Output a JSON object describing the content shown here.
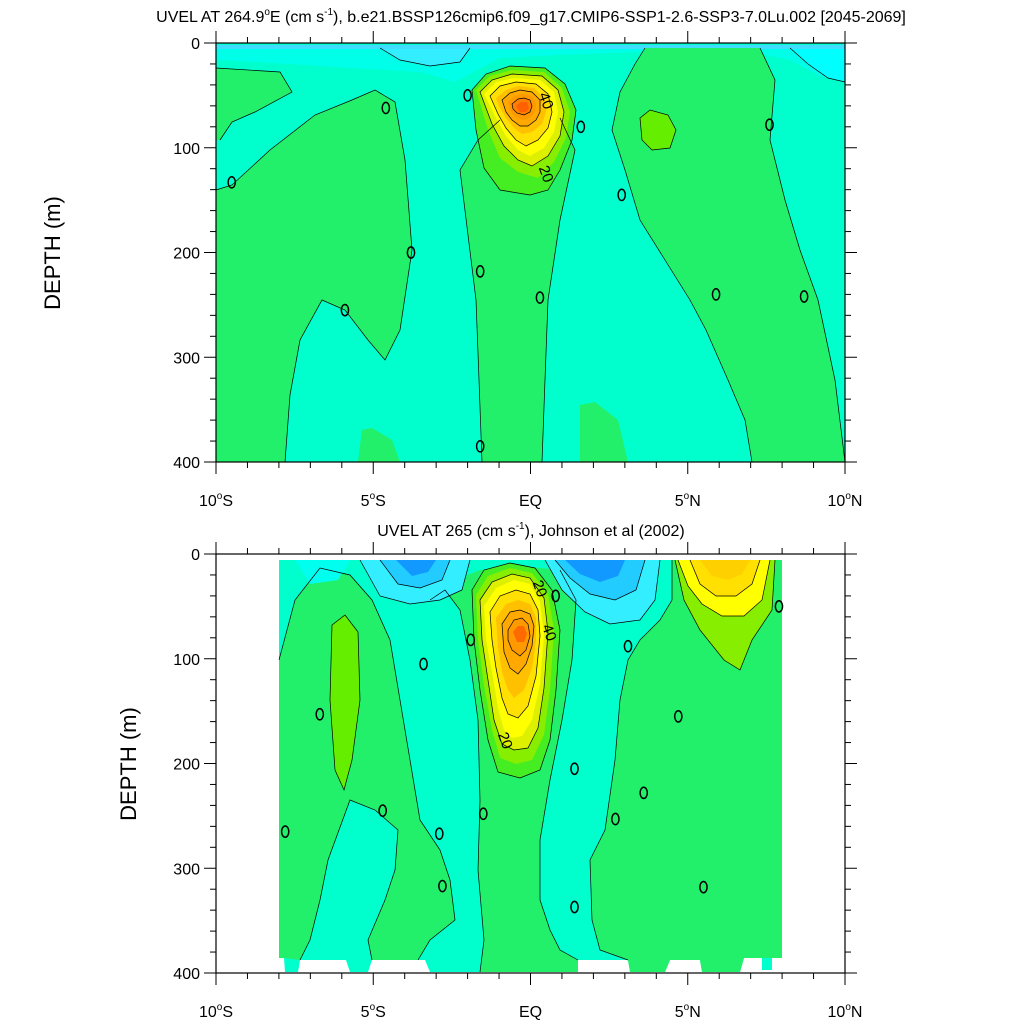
{
  "chart_data": [
    {
      "type": "contour",
      "title": "UVEL AT 264.9°E (cm s⁻¹), b.e21.BSSP126cmip6.f09_g17.CMIP6-SSP1-2.6-SSP3-7.0Lu.002 [2045-2069]",
      "title_parts": {
        "pre": "UVEL AT 264.9",
        "deg": "o",
        "mid": "E (cm s",
        "sup": "-1",
        "post": "), b.e21.BSSP126cmip6.f09_g17.CMIP6-SSP1-2.6-SSP3-7.0Lu.002 [2045-2069]"
      },
      "ylabel": "DEPTH (m)",
      "xlim": [
        -10,
        10
      ],
      "ylim": [
        400,
        0
      ],
      "x_ticks": [
        {
          "value": -10,
          "num": "10",
          "deg": "o",
          "hem": "S"
        },
        {
          "value": -5,
          "num": "5",
          "deg": "o",
          "hem": "S"
        },
        {
          "value": 0,
          "num": "EQ",
          "deg": "",
          "hem": ""
        },
        {
          "value": 5,
          "num": "5",
          "deg": "o",
          "hem": "N"
        },
        {
          "value": 10,
          "num": "10",
          "deg": "o",
          "hem": "N"
        }
      ],
      "y_ticks": [
        0,
        100,
        200,
        300,
        400
      ],
      "contour_labels": [
        {
          "lat": 0.5,
          "depth": 55,
          "text": "40"
        },
        {
          "lat": 0.5,
          "depth": 125,
          "text": "20"
        }
      ],
      "zero_labels": [
        {
          "lat": -9.5,
          "depth": 133
        },
        {
          "lat": -4.6,
          "depth": 62
        },
        {
          "lat": -3.8,
          "depth": 200
        },
        {
          "lat": -5.9,
          "depth": 255
        },
        {
          "lat": -2.0,
          "depth": 50
        },
        {
          "lat": -1.6,
          "depth": 218
        },
        {
          "lat": -1.6,
          "depth": 385
        },
        {
          "lat": 0.3,
          "depth": 243
        },
        {
          "lat": 1.6,
          "depth": 80
        },
        {
          "lat": 2.9,
          "depth": 145
        },
        {
          "lat": 5.9,
          "depth": 240
        },
        {
          "lat": 7.6,
          "depth": 78
        },
        {
          "lat": 8.7,
          "depth": 242
        }
      ],
      "value_range": [
        -20,
        70
      ],
      "core": {
        "lat": 0.0,
        "depth": 68,
        "max": 70
      }
    },
    {
      "type": "contour",
      "title": "UVEL AT 265 (cm s⁻¹), Johnson et al (2002)",
      "title_parts": {
        "pre": "UVEL AT 265",
        "deg": "",
        "mid": " (cm s",
        "sup": "-1",
        "post": "), Johnson et al (2002)"
      },
      "ylabel": "DEPTH (m)",
      "xlim": [
        -10,
        10
      ],
      "ylim": [
        400,
        0
      ],
      "data_extent_lat": [
        -7.9,
        7.9
      ],
      "x_ticks": [
        {
          "value": -10,
          "num": "10",
          "deg": "o",
          "hem": "S"
        },
        {
          "value": -5,
          "num": "5",
          "deg": "o",
          "hem": "S"
        },
        {
          "value": 0,
          "num": "EQ",
          "deg": "",
          "hem": ""
        },
        {
          "value": 5,
          "num": "5",
          "deg": "o",
          "hem": "N"
        },
        {
          "value": 10,
          "num": "10",
          "deg": "o",
          "hem": "N"
        }
      ],
      "y_ticks": [
        0,
        100,
        200,
        300,
        400
      ],
      "contour_labels": [
        {
          "lat": 0.3,
          "depth": 33,
          "text": "20"
        },
        {
          "lat": 0.6,
          "depth": 75,
          "text": "40"
        },
        {
          "lat": -0.8,
          "depth": 178,
          "text": "20"
        }
      ],
      "zero_labels": [
        {
          "lat": -7.8,
          "depth": 265
        },
        {
          "lat": -6.7,
          "depth": 153
        },
        {
          "lat": -3.4,
          "depth": 105
        },
        {
          "lat": -4.7,
          "depth": 245
        },
        {
          "lat": -2.9,
          "depth": 267
        },
        {
          "lat": -2.8,
          "depth": 317
        },
        {
          "lat": -1.9,
          "depth": 82
        },
        {
          "lat": -1.5,
          "depth": 248
        },
        {
          "lat": 0.8,
          "depth": 40
        },
        {
          "lat": 1.4,
          "depth": 205
        },
        {
          "lat": 1.4,
          "depth": 337
        },
        {
          "lat": 3.1,
          "depth": 88
        },
        {
          "lat": 2.7,
          "depth": 253
        },
        {
          "lat": 3.6,
          "depth": 228
        },
        {
          "lat": 4.7,
          "depth": 155
        },
        {
          "lat": 5.5,
          "depth": 318
        },
        {
          "lat": 7.9,
          "depth": 50
        }
      ],
      "value_range": [
        -30,
        50
      ],
      "core": {
        "lat": -0.2,
        "depth": 65,
        "max": 50
      },
      "secondary_core": {
        "lat": 6.0,
        "depth": 25
      }
    }
  ]
}
